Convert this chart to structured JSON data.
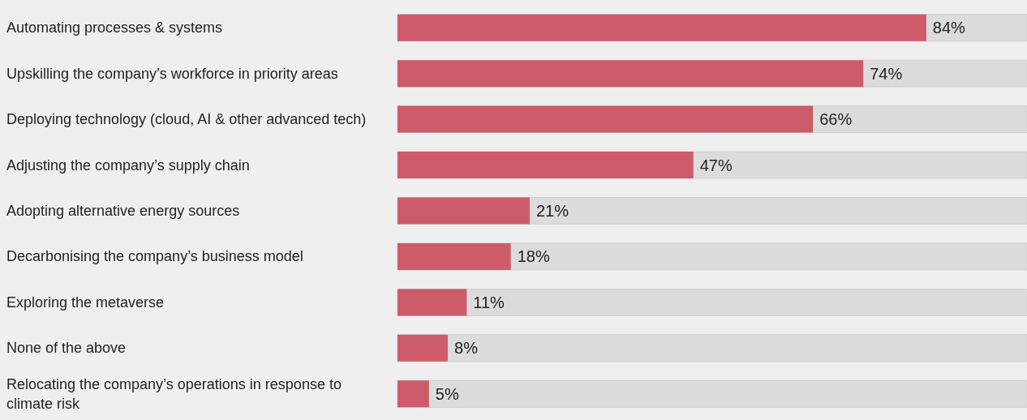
{
  "chart_data": {
    "type": "bar",
    "orientation": "horizontal",
    "categories": [
      "Automating processes & systems",
      "Upskilling the company’s workforce in priority areas",
      "Deploying technology (cloud, AI & other advanced tech)",
      "Adjusting the company’s supply chain",
      "Adopting alternative energy sources",
      "Decarbonising the company’s business model",
      "Exploring the metaverse",
      "None of the above",
      "Relocating the company’s operations in response to climate risk"
    ],
    "values": [
      84,
      74,
      66,
      47,
      21,
      18,
      11,
      8,
      5
    ],
    "value_labels": [
      "84%",
      "74%",
      "66%",
      "47%",
      "21%",
      "18%",
      "11%",
      "8%",
      "5%"
    ],
    "color": "#cd5b6a",
    "tick_labels": "y"
  }
}
